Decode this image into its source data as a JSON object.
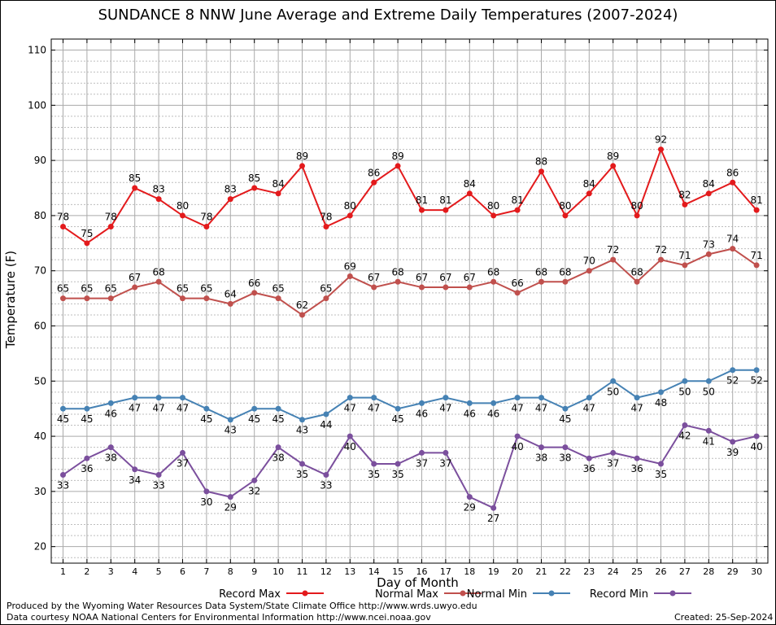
{
  "chart_data": {
    "type": "line",
    "title": "SUNDANCE 8 NNW June Average and Extreme Daily Temperatures (2007-2024)",
    "xlabel": "Day of Month",
    "ylabel": "Temperature (F)",
    "ylim": [
      17,
      112
    ],
    "yticks": [
      20,
      30,
      40,
      50,
      60,
      70,
      80,
      90,
      100,
      110
    ],
    "x": [
      1,
      2,
      3,
      4,
      5,
      6,
      7,
      8,
      9,
      10,
      11,
      12,
      13,
      14,
      15,
      16,
      17,
      18,
      19,
      20,
      21,
      22,
      23,
      24,
      25,
      26,
      27,
      28,
      29,
      30
    ],
    "grid": true,
    "legend_position": "bottom",
    "series": [
      {
        "name": "Record Max",
        "color": "#e31a1c",
        "label_pos": "above",
        "values": [
          78,
          75,
          78,
          85,
          83,
          80,
          78,
          83,
          85,
          84,
          89,
          78,
          80,
          86,
          89,
          81,
          81,
          84,
          80,
          81,
          88,
          80,
          84,
          89,
          80,
          92,
          82,
          84,
          86,
          81
        ]
      },
      {
        "name": "Normal Max",
        "color": "#c0504d",
        "label_pos": "above",
        "values": [
          65,
          65,
          65,
          67,
          68,
          65,
          65,
          64,
          66,
          65,
          62,
          65,
          69,
          67,
          68,
          67,
          67,
          67,
          68,
          66,
          68,
          68,
          70,
          72,
          68,
          72,
          71,
          73,
          74,
          71
        ]
      },
      {
        "name": "Normal Min",
        "color": "#4682b4",
        "label_pos": "below",
        "values": [
          45,
          45,
          46,
          47,
          47,
          47,
          45,
          43,
          45,
          45,
          43,
          44,
          47,
          47,
          45,
          46,
          47,
          46,
          46,
          47,
          47,
          45,
          47,
          50,
          47,
          48,
          50,
          50,
          52,
          52
        ]
      },
      {
        "name": "Record Min",
        "color": "#7b4f9d",
        "label_pos": "below",
        "values": [
          33,
          36,
          38,
          34,
          33,
          37,
          30,
          29,
          32,
          38,
          35,
          33,
          40,
          35,
          35,
          37,
          37,
          29,
          27,
          40,
          38,
          38,
          36,
          37,
          36,
          35,
          42,
          41,
          39,
          40
        ]
      }
    ]
  },
  "footer": {
    "producer": "Produced by the Wyoming Water Resources Data System/State Climate Office http://www.wrds.uwyo.edu",
    "source": "Data courtesy NOAA National Centers for Environmental Information http://www.ncei.noaa.gov",
    "created": "Created:  25-Sep-2024"
  }
}
